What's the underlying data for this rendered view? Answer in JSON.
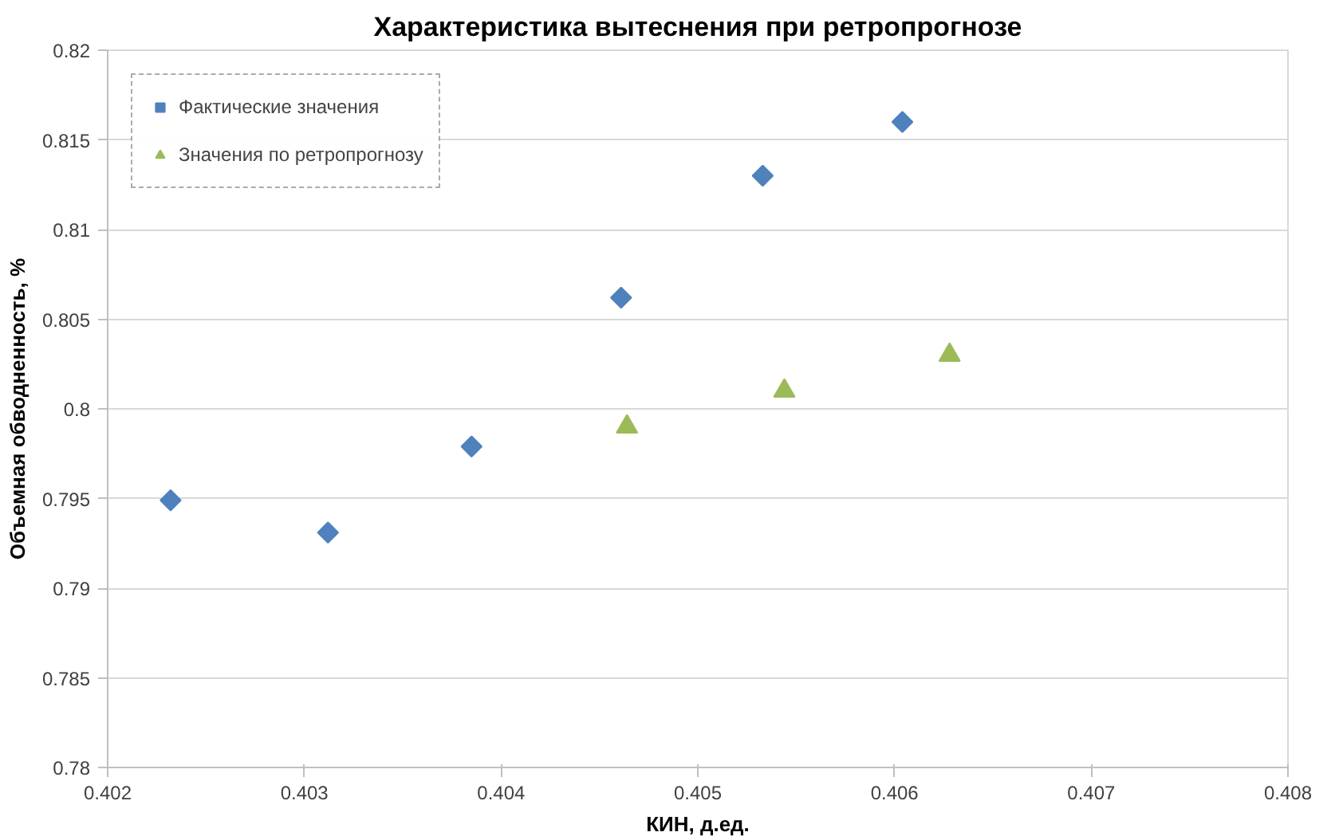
{
  "chart_data": {
    "type": "scatter",
    "title": "Характеристика вытеснения при ретропрогнозе",
    "xlabel": "КИН, д.ед.",
    "ylabel": "Объемная обводненность, %",
    "series": [
      {
        "name": "Фактические значения",
        "color": "#4f81bd",
        "marker": "diamond",
        "x": [
          0.40232,
          0.40312,
          0.40385,
          0.40461,
          0.40533,
          0.40604
        ],
        "values": [
          0.7949,
          0.7931,
          0.7979,
          0.8062,
          0.813,
          0.816
        ]
      },
      {
        "name": "Значения по ретропрогнозу",
        "color": "#9bbb59",
        "marker": "triangle",
        "x": [
          0.40464,
          0.40544,
          0.40628
        ],
        "values": [
          0.799,
          0.801,
          0.803
        ]
      }
    ],
    "xlim": [
      0.402,
      0.408
    ],
    "xticks": [
      0.402,
      0.403,
      0.404,
      0.405,
      0.406,
      0.407,
      0.408
    ],
    "ylim": [
      0.78,
      0.82
    ],
    "yticks": [
      0.78,
      0.785,
      0.79,
      0.795,
      0.8,
      0.805,
      0.81,
      0.815,
      0.82
    ],
    "grid": "y",
    "legend": "top left"
  }
}
